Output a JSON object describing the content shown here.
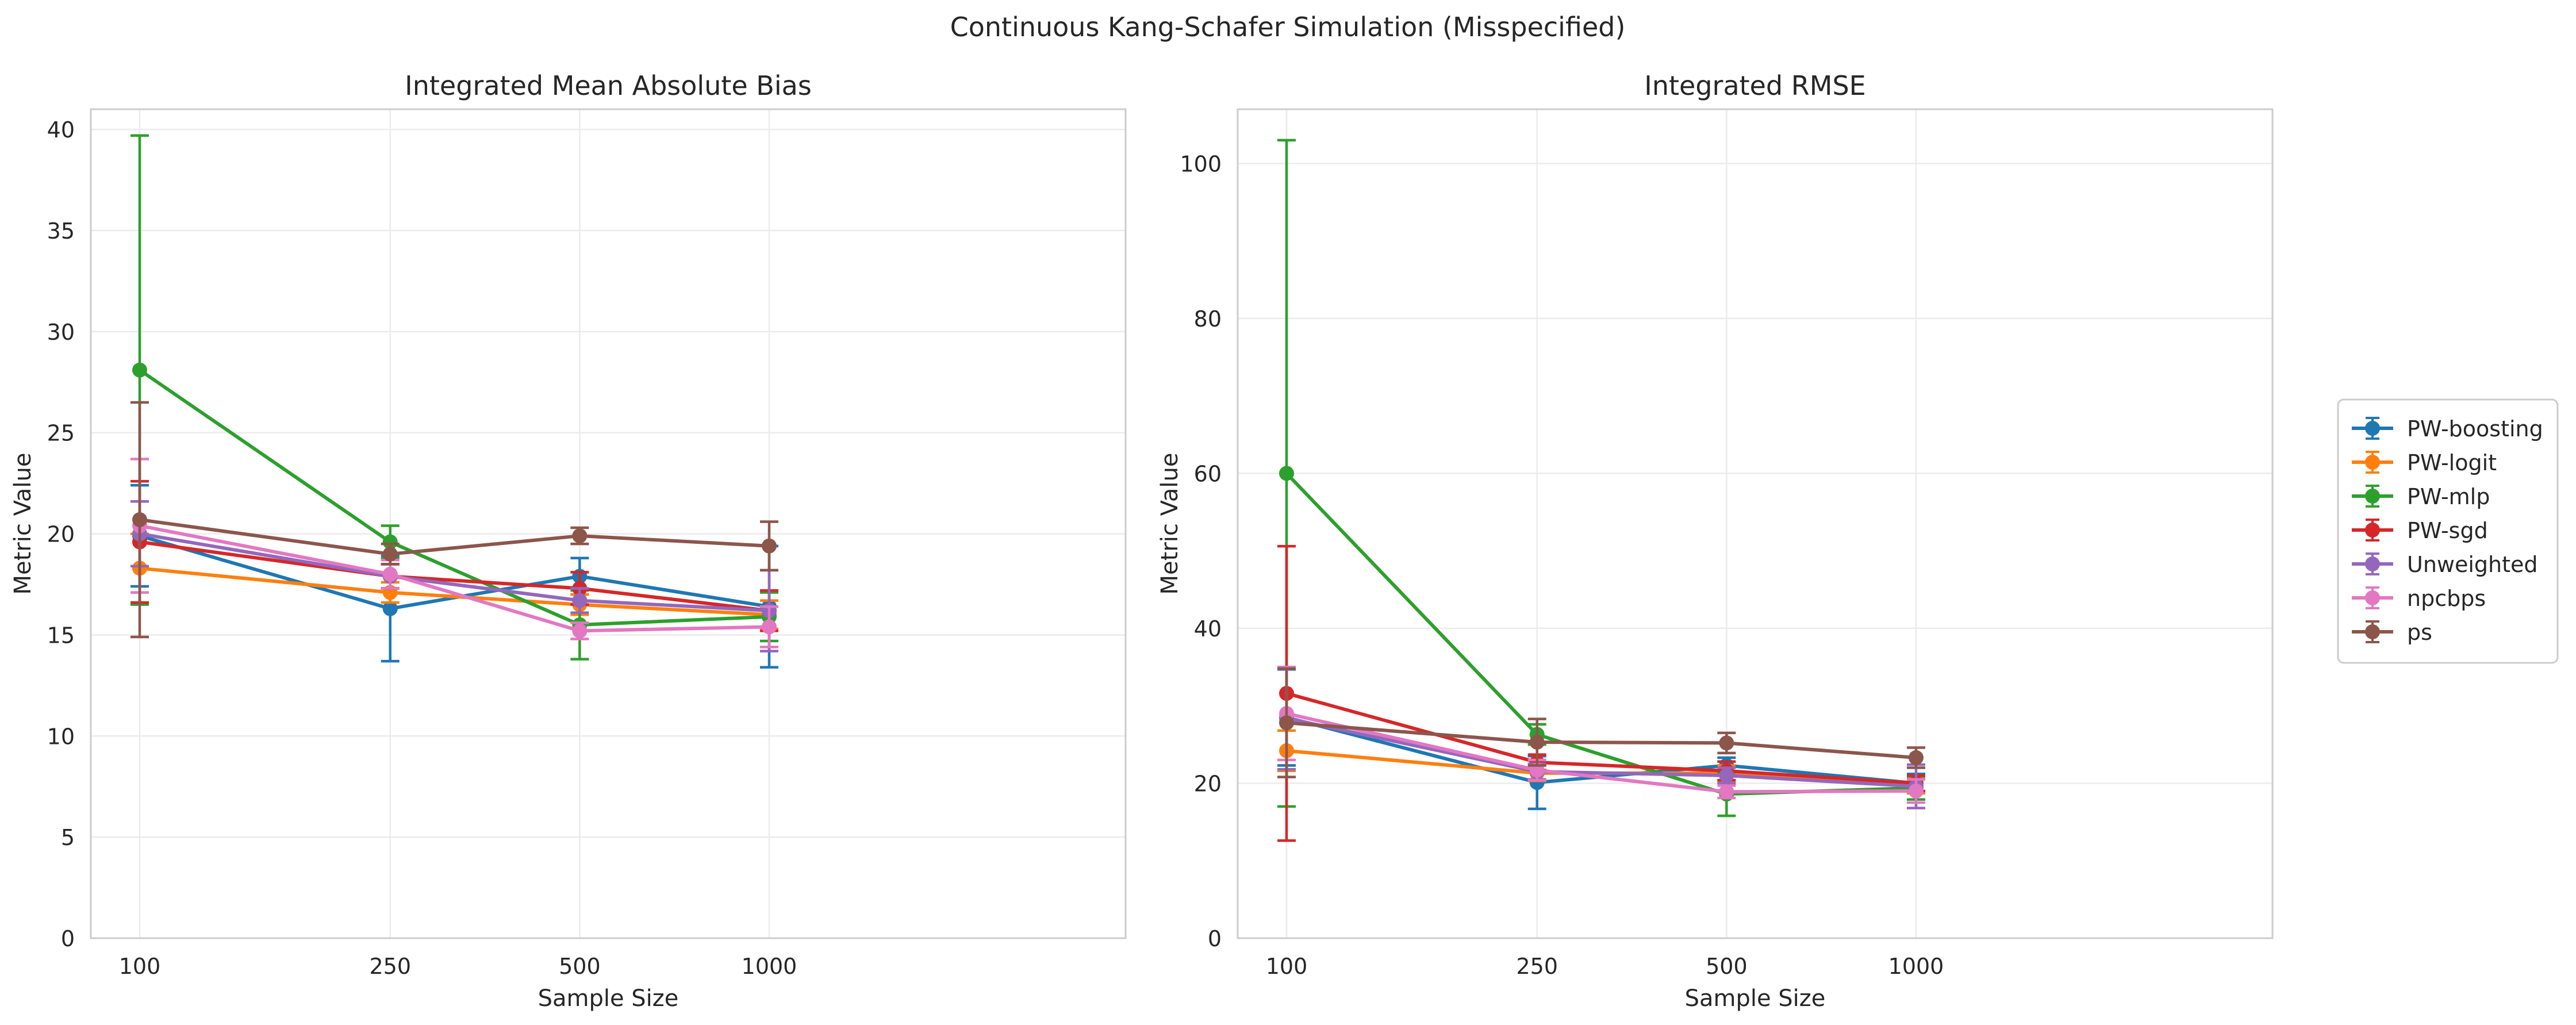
{
  "figure": {
    "suptitle": "Continuous Kang-Schafer Simulation (Misspecified)"
  },
  "chart_data": [
    {
      "type": "line",
      "title": "Integrated Mean Absolute Bias",
      "xlabel": "Sample Size",
      "ylabel": "Metric Value",
      "x_scale": "log",
      "x": [
        100,
        250,
        500,
        1000
      ],
      "x_tick_labels": [
        "100",
        "250",
        "500",
        "1000"
      ],
      "ylim": [
        0,
        41
      ],
      "y_ticks": [
        0,
        5,
        10,
        15,
        20,
        25,
        30,
        35,
        40
      ],
      "grid": true,
      "series": [
        {
          "name": "PW-boosting",
          "values": [
            19.9,
            16.3,
            17.9,
            16.4
          ],
          "err": [
            2.5,
            2.6,
            0.9,
            3.0
          ]
        },
        {
          "name": "PW-logit",
          "values": [
            18.3,
            17.1,
            16.5,
            16.0
          ],
          "err": [
            1.7,
            0.5,
            0.5,
            0.7
          ]
        },
        {
          "name": "PW-mlp",
          "values": [
            28.1,
            19.6,
            15.5,
            15.9
          ],
          "err": [
            11.6,
            0.8,
            1.7,
            1.2
          ]
        },
        {
          "name": "PW-sgd",
          "values": [
            19.6,
            17.9,
            17.3,
            16.2
          ],
          "err": [
            3.0,
            0.6,
            0.8,
            1.0
          ]
        },
        {
          "name": "Unweighted",
          "values": [
            20.0,
            17.9,
            16.7,
            16.2
          ],
          "err": [
            1.6,
            0.6,
            0.6,
            2.0
          ]
        },
        {
          "name": "npcbps",
          "values": [
            20.4,
            18.0,
            15.2,
            15.4
          ],
          "err": [
            3.3,
            0.7,
            0.4,
            1.0
          ]
        },
        {
          "name": "ps",
          "values": [
            20.7,
            19.0,
            19.9,
            19.4
          ],
          "err": [
            5.8,
            0.5,
            0.4,
            1.2
          ]
        }
      ]
    },
    {
      "type": "line",
      "title": "Integrated RMSE",
      "xlabel": "Sample Size",
      "ylabel": "Metric Value",
      "x_scale": "log",
      "x": [
        100,
        250,
        500,
        1000
      ],
      "x_tick_labels": [
        "100",
        "250",
        "500",
        "1000"
      ],
      "ylim": [
        0,
        107
      ],
      "y_ticks": [
        0,
        20,
        40,
        60,
        80,
        100
      ],
      "grid": true,
      "series": [
        {
          "name": "PW-boosting",
          "values": [
            28.5,
            20.1,
            22.3,
            20.0
          ],
          "err": [
            6.2,
            3.4,
            1.0,
            1.2
          ]
        },
        {
          "name": "PW-logit",
          "values": [
            24.2,
            21.3,
            21.3,
            19.7
          ],
          "err": [
            2.6,
            1.0,
            1.0,
            1.0
          ]
        },
        {
          "name": "PW-mlp",
          "values": [
            60.0,
            26.3,
            18.6,
            19.4
          ],
          "err": [
            43.0,
            1.3,
            2.8,
            1.5
          ]
        },
        {
          "name": "PW-sgd",
          "values": [
            31.6,
            22.7,
            21.6,
            20.0
          ],
          "err": [
            19.0,
            1.0,
            1.2,
            1.0
          ]
        },
        {
          "name": "Unweighted",
          "values": [
            28.4,
            21.5,
            21.0,
            19.6
          ],
          "err": [
            6.6,
            1.0,
            1.0,
            2.8
          ]
        },
        {
          "name": "npcbps",
          "values": [
            29.0,
            21.7,
            18.9,
            19.0
          ],
          "err": [
            6.0,
            1.3,
            0.8,
            1.5
          ]
        },
        {
          "name": "ps",
          "values": [
            27.8,
            25.3,
            25.2,
            23.3
          ],
          "err": [
            7.0,
            3.0,
            1.3,
            1.3
          ]
        }
      ]
    }
  ],
  "legend": {
    "placement": "right",
    "entries": [
      "PW-boosting",
      "PW-logit",
      "PW-mlp",
      "PW-sgd",
      "Unweighted",
      "npcbps",
      "ps"
    ]
  },
  "colors": {
    "PW-boosting": "#1f77b4",
    "PW-logit": "#ff7f0e",
    "PW-mlp": "#2ca02c",
    "PW-sgd": "#d62728",
    "Unweighted": "#9467bd",
    "npcbps": "#e377c2",
    "ps": "#8c564b"
  }
}
